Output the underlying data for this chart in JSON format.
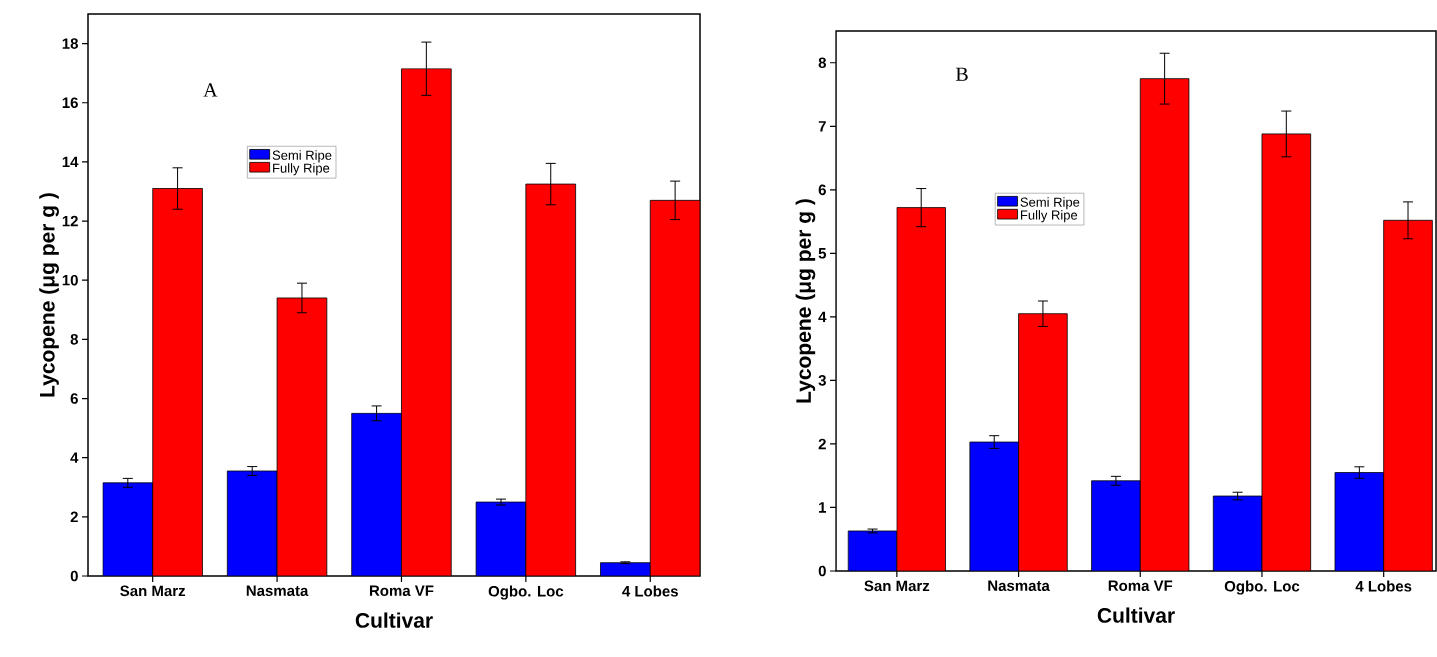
{
  "chart_data": [
    {
      "type": "bar",
      "categories": [
        "San Marz",
        "Nasmata",
        "Roma VF",
        "Ogbo. Loc",
        "4 Lobes"
      ],
      "xlabel": "Cultivar",
      "ylabel": "Lycopene (μg per g )",
      "ylim": [
        0,
        19
      ],
      "yticks": [
        0,
        2,
        4,
        6,
        8,
        10,
        12,
        14,
        16,
        18
      ],
      "legend": "top left",
      "annotations": [
        "A"
      ],
      "series": [
        {
          "name": "Semi Ripe",
          "color": "#0000ff",
          "values": [
            3.15,
            3.55,
            5.5,
            2.5,
            0.45
          ],
          "errors": [
            0.15,
            0.15,
            0.25,
            0.1,
            0.03
          ]
        },
        {
          "name": "Fully Ripe",
          "color": "#ff0000",
          "values": [
            13.1,
            9.4,
            17.15,
            13.25,
            12.7
          ],
          "errors": [
            0.7,
            0.5,
            0.9,
            0.7,
            0.65
          ]
        }
      ]
    },
    {
      "type": "bar",
      "categories": [
        "San Marz",
        "Nasmata",
        "Roma VF",
        "Ogbo. Loc",
        "4 Lobes"
      ],
      "xlabel": "Cultivar",
      "ylabel": "Lycopene (μg per g )",
      "ylim": [
        0,
        8.5
      ],
      "yticks": [
        0,
        1,
        2,
        3,
        4,
        5,
        6,
        7,
        8
      ],
      "legend": "top left",
      "annotations": [
        "B"
      ],
      "series": [
        {
          "name": "Semi Ripe",
          "color": "#0000ff",
          "values": [
            0.63,
            2.03,
            1.42,
            1.18,
            1.55
          ],
          "errors": [
            0.03,
            0.1,
            0.07,
            0.06,
            0.09
          ]
        },
        {
          "name": "Fully Ripe",
          "color": "#ff0000",
          "values": [
            5.72,
            4.05,
            7.75,
            6.88,
            5.52
          ],
          "errors": [
            0.3,
            0.2,
            0.4,
            0.36,
            0.29
          ]
        }
      ]
    }
  ]
}
